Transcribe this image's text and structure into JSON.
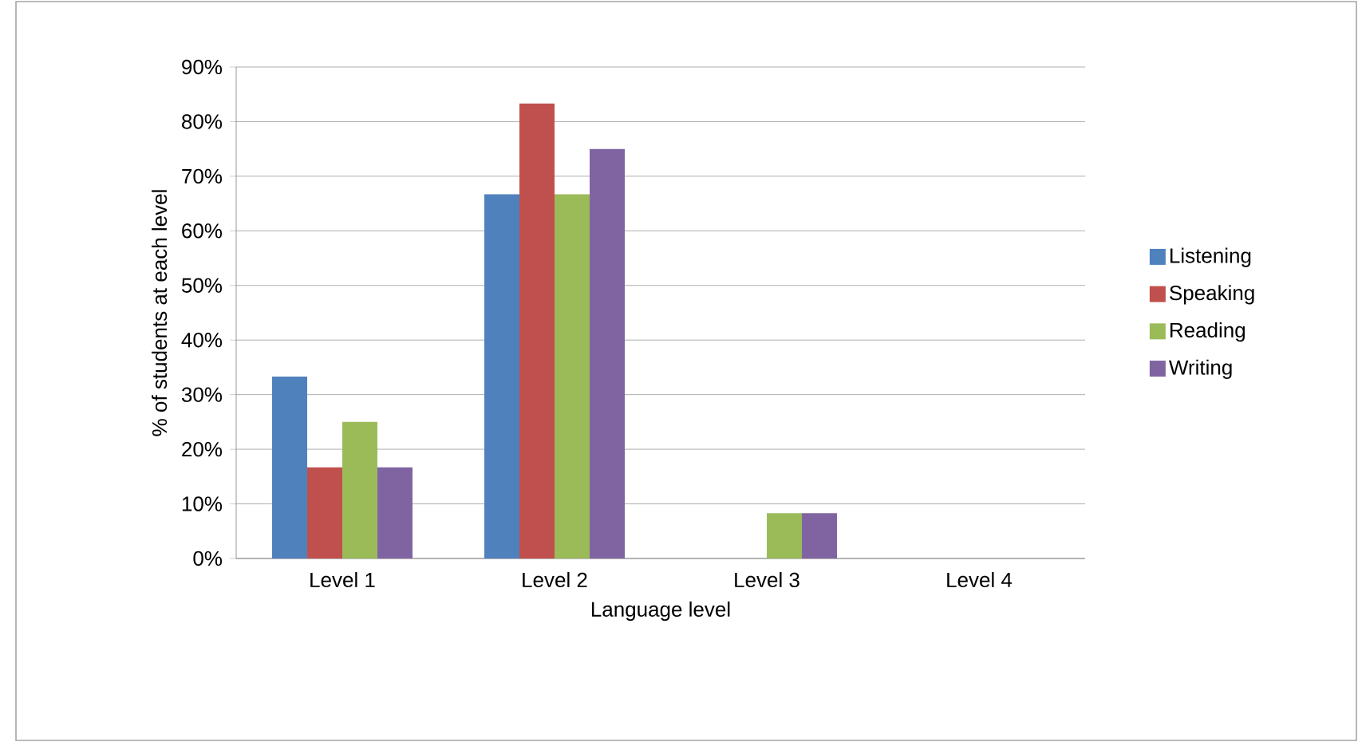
{
  "chart_data": {
    "type": "bar",
    "xlabel": "Language level",
    "ylabel": "% of students at each level",
    "categories": [
      "Level 1",
      "Level 2",
      "Level 3",
      "Level 4"
    ],
    "series": [
      {
        "name": "Listening",
        "color": "#4f81bd",
        "values": [
          33.3,
          66.7,
          0,
          0
        ]
      },
      {
        "name": "Speaking",
        "color": "#c0504d",
        "values": [
          16.7,
          83.3,
          0,
          0
        ]
      },
      {
        "name": "Reading",
        "color": "#9bbb59",
        "values": [
          25,
          66.7,
          8.3,
          0
        ]
      },
      {
        "name": "Writing",
        "color": "#8064a2",
        "values": [
          16.7,
          75,
          8.3,
          0
        ]
      }
    ],
    "ylim": [
      0,
      90
    ],
    "yticks": [
      {
        "value": 0,
        "label": "0%"
      },
      {
        "value": 10,
        "label": "10%"
      },
      {
        "value": 20,
        "label": "20%"
      },
      {
        "value": 30,
        "label": "30%"
      },
      {
        "value": 40,
        "label": "40%"
      },
      {
        "value": 50,
        "label": "50%"
      },
      {
        "value": 60,
        "label": "60%"
      },
      {
        "value": 70,
        "label": "70%"
      },
      {
        "value": 80,
        "label": "80%"
      },
      {
        "value": 90,
        "label": "90%"
      }
    ],
    "grid": "y",
    "legend": "right"
  }
}
